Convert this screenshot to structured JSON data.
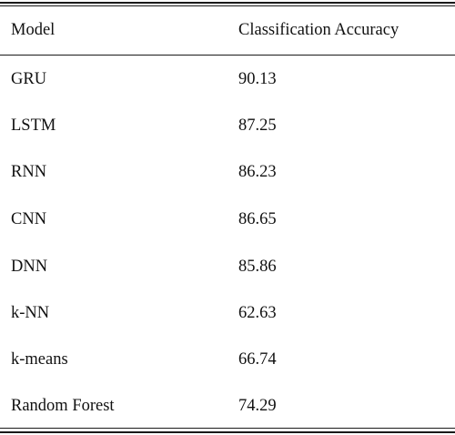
{
  "table": {
    "headers": [
      "Model",
      "Classification Accuracy"
    ],
    "rows": [
      [
        "GRU",
        "90.13"
      ],
      [
        "LSTM",
        "87.25"
      ],
      [
        "RNN",
        "86.23"
      ],
      [
        "CNN",
        "86.65"
      ],
      [
        "DNN",
        "85.86"
      ],
      [
        "k-NN",
        "62.63"
      ],
      [
        "k-means",
        "66.74"
      ],
      [
        "Random Forest",
        "74.29"
      ]
    ]
  }
}
